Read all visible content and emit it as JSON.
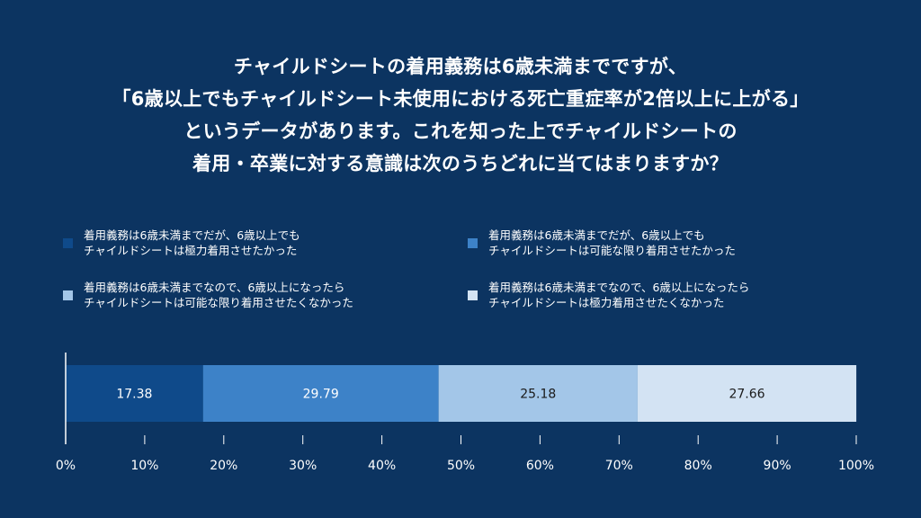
{
  "title": {
    "lines": [
      "チャイルドシートの着用義務は6歳未満までですが、",
      "「6歳以上でもチャイルドシート未使用における死亡重症率が2倍以上に上がる」",
      "というデータがあります。これを知った上でチャイルドシートの",
      "着用・卒業に対する意識は次のうちどれに当てはまりますか？"
    ]
  },
  "legend": [
    {
      "line1": "着用義務は6歳未満までだが、6歳以上でも",
      "line2": "チャイルドシートは極力着用させたかった",
      "color": "#0f4a8a"
    },
    {
      "line1": "着用義務は6歳未満までだが、6歳以上でも",
      "line2": "チャイルドシートは可能な限り着用させたかった",
      "color": "#3d82c8"
    },
    {
      "line1": "着用義務は6歳未満までなので、6歳以上になったら",
      "line2": "チャイルドシートは可能な限り着用させたくなかった",
      "color": "#a3c6e8"
    },
    {
      "line1": "着用義務は6歳未満までなので、6歳以上になったら",
      "line2": "チャイルドシートは極力着用させたくなかった",
      "color": "#d3e3f3"
    }
  ],
  "chart_data": {
    "type": "bar",
    "orientation": "horizontal-stacked-100",
    "categories": [
      ""
    ],
    "series": [
      {
        "name": "着用義務は6歳未満までだが、6歳以上でも チャイルドシートは極力着用させたかった",
        "values": [
          17.38
        ],
        "label": "17.38",
        "color": "#0f4a8a",
        "label_color": "#ffffff"
      },
      {
        "name": "着用義務は6歳未満までだが、6歳以上でも チャイルドシートは可能な限り着用させたかった",
        "values": [
          29.79
        ],
        "label": "29.79",
        "color": "#3d82c8",
        "label_color": "#ffffff"
      },
      {
        "name": "着用義務は6歳未満までなので、6歳以上になったら チャイルドシートは可能な限り着用させたくなかった",
        "values": [
          25.18
        ],
        "label": "25.18",
        "color": "#a3c6e8",
        "label_color": "#1a1a1a"
      },
      {
        "name": "着用義務は6歳未満までなので、6歳以上になったら チャイルドシートは極力着用させたくなかった",
        "values": [
          27.66
        ],
        "label": "27.66",
        "color": "#d3e3f3",
        "label_color": "#1a1a1a"
      }
    ],
    "xlim": [
      0,
      100
    ],
    "xticks": [
      0,
      10,
      20,
      30,
      40,
      50,
      60,
      70,
      80,
      90,
      100
    ],
    "xtick_labels": [
      "0%",
      "10%",
      "20%",
      "30%",
      "40%",
      "50%",
      "60%",
      "70%",
      "80%",
      "90%",
      "100%"
    ],
    "grid": false,
    "legend_position": "top"
  }
}
